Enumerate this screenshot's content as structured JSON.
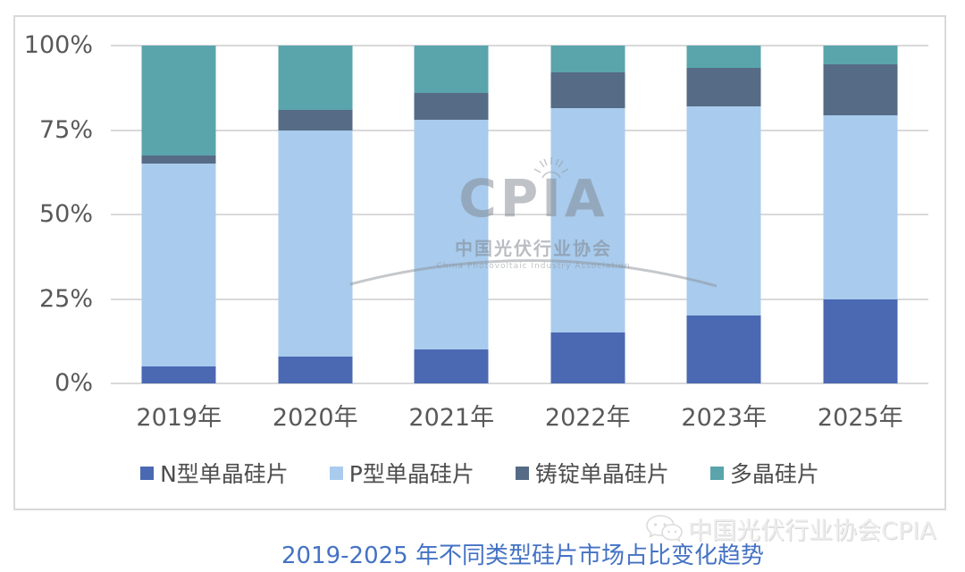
{
  "chart_data": {
    "type": "bar",
    "stacked": true,
    "orientation": "vertical",
    "categories": [
      "2019年",
      "2020年",
      "2021年",
      "2022年",
      "2023年",
      "2025年"
    ],
    "series": [
      {
        "name": "N型单晶硅片",
        "color": "#4a69b2",
        "values": [
          5,
          8,
          10,
          15,
          20,
          25
        ]
      },
      {
        "name": "P型单晶硅片",
        "color": "#a9cbed",
        "values": [
          60,
          67,
          68,
          66.5,
          62,
          54.5
        ]
      },
      {
        "name": "铸锭单晶硅片",
        "color": "#566b85",
        "values": [
          2.5,
          6,
          8,
          10.5,
          11.5,
          15
        ]
      },
      {
        "name": "多晶硅片",
        "color": "#5aa4ab",
        "values": [
          32.5,
          19,
          14,
          8,
          6.5,
          5.5
        ]
      }
    ],
    "title": "2019-2025 年不同类型硅片市场占比变化趋势",
    "xlabel": "",
    "ylabel": "",
    "ylim": [
      0,
      100
    ],
    "y_ticks": [
      {
        "label": "0%",
        "value": 0
      },
      {
        "label": "25%",
        "value": 25
      },
      {
        "label": "50%",
        "value": 50
      },
      {
        "label": "75%",
        "value": 75
      },
      {
        "label": "100%",
        "value": 100
      }
    ],
    "grid": true,
    "legend_position": "bottom"
  },
  "watermark": {
    "acronym": "CPIA",
    "org_cn": "中国光伏行业协会",
    "org_en": "China Photovoltaic Industry Association",
    "wechat_account": "中国光伏行业协会CPIA"
  },
  "caption": {
    "text": "2019-2025 年不同类型硅片市场占比变化趋势"
  },
  "colors": {
    "n_type": "#4a69b2",
    "p_type": "#a9cbed",
    "cast_mono": "#566b85",
    "multi": "#5aa4ab",
    "gridline": "#d9d9d9",
    "axis_text": "#595959",
    "caption_text": "#4472c4"
  }
}
